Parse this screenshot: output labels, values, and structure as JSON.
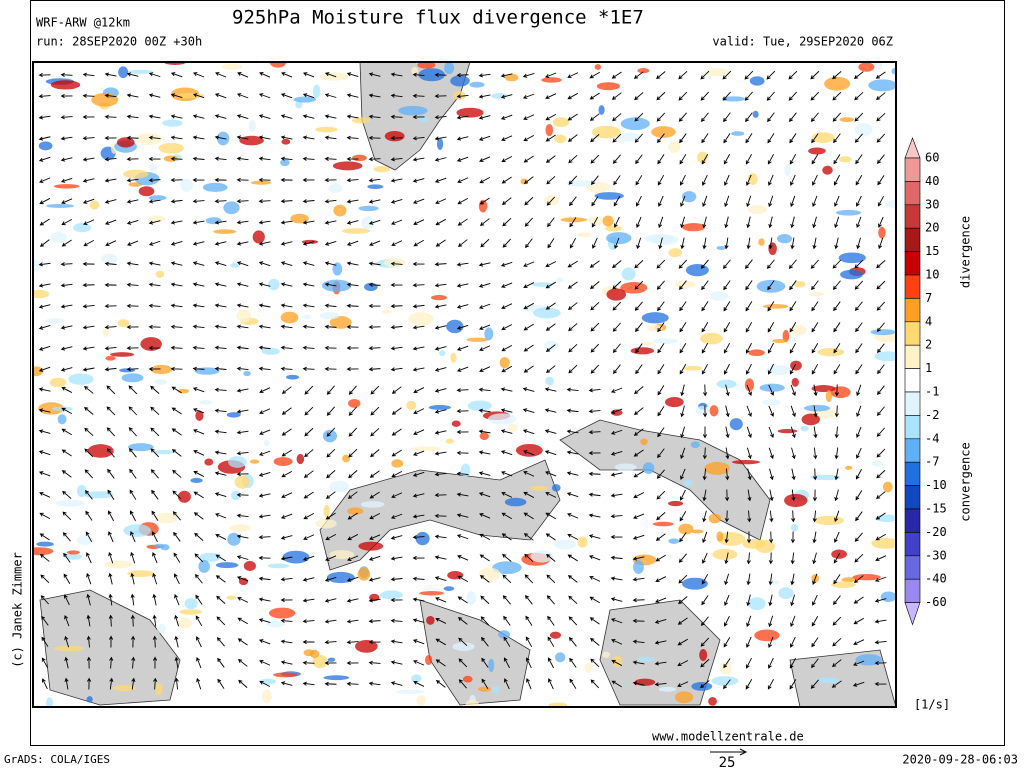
{
  "header": {
    "model": "WRF-ARW @12km",
    "title": "925hPa Moisture flux divergence *1E7",
    "run": "run: 28SEP2020 00Z +30h",
    "valid": "valid: Tue, 29SEP2020 06Z"
  },
  "legend": {
    "labels": [
      "60",
      "40",
      "30",
      "20",
      "15",
      "10",
      "7",
      "4",
      "2",
      "1",
      "-1",
      "-2",
      "-4",
      "-7",
      "-10",
      "-15",
      "-20",
      "-30",
      "-40",
      "-60"
    ],
    "colors": [
      "#f8c8c8",
      "#f09898",
      "#e06868",
      "#c83838",
      "#a81818",
      "#c80000",
      "#ff4010",
      "#ffa020",
      "#ffd870",
      "#fff2c8",
      "#ffffff",
      "#e0f4ff",
      "#a8e4ff",
      "#60b0f8",
      "#2070e0",
      "#1048c0",
      "#2828a8",
      "#4040c8",
      "#6868e0",
      "#9888f0",
      "#c8b8ff"
    ],
    "upper_label": "divergence",
    "lower_label": "convergence",
    "unit": "[1/s]"
  },
  "footer": {
    "copyright": "(c) Janek Zimmer",
    "website": "www.modellzentrale.de",
    "software": "GrADS: COLA/IGES",
    "timestamp": "2020-09-28-06:03",
    "reference_arrow": "25"
  }
}
